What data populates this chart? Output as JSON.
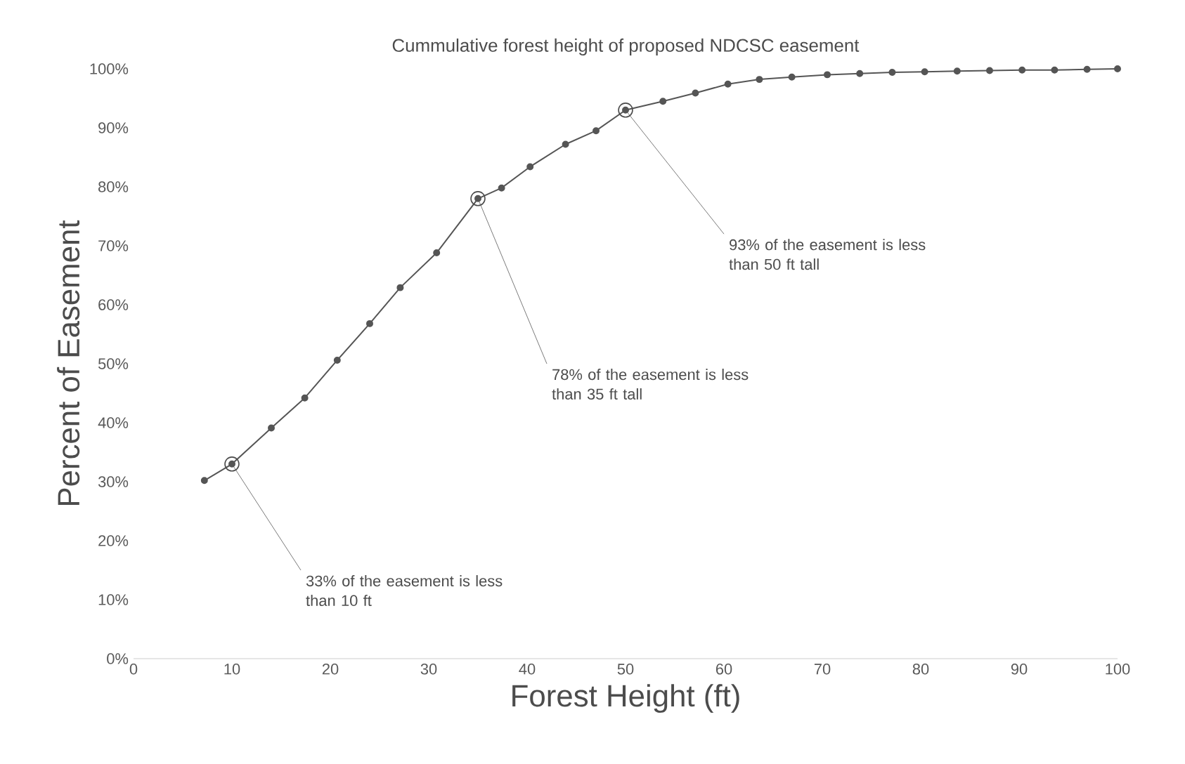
{
  "chart_data": {
    "type": "line",
    "title": "Cummulative forest height of proposed NDCSC easement",
    "xlabel": "Forest Height (ft)",
    "ylabel": "Percent of Easement",
    "series": [
      {
        "color": "#555555",
        "x": [
          7.2,
          10,
          14.0,
          17.4,
          20.7,
          24.0,
          27.1,
          30.8,
          35,
          37.4,
          40.3,
          43.9,
          47,
          50,
          53.8,
          57.1,
          60.4,
          63.6,
          66.9,
          70.5,
          73.8,
          77.1,
          80.4,
          83.7,
          87,
          90.3,
          93.6,
          96.9,
          100
        ],
        "values": [
          30.2,
          33,
          39.1,
          44.2,
          50.6,
          56.8,
          62.9,
          68.8,
          78,
          79.8,
          83.4,
          87.2,
          89.5,
          93,
          94.5,
          95.9,
          97.4,
          98.2,
          98.6,
          99,
          99.2,
          99.4,
          99.5,
          99.6,
          99.7,
          99.8,
          99.8,
          99.9,
          100
        ]
      }
    ],
    "marker": "circle",
    "xlim": [
      0,
      100
    ],
    "xticks": [
      0,
      10,
      20,
      30,
      40,
      50,
      60,
      70,
      80,
      90,
      100
    ],
    "ylim": [
      0,
      100
    ],
    "yticks": [
      {
        "value": 0,
        "label": "0%"
      },
      {
        "value": 10,
        "label": "10%"
      },
      {
        "value": 20,
        "label": "20%"
      },
      {
        "value": 30,
        "label": "30%"
      },
      {
        "value": 40,
        "label": "40%"
      },
      {
        "value": 50,
        "label": "50%"
      },
      {
        "value": 60,
        "label": "60%"
      },
      {
        "value": 70,
        "label": "70%"
      },
      {
        "value": 80,
        "label": "80%"
      },
      {
        "value": 90,
        "label": "90%"
      },
      {
        "value": 100,
        "label": "100%"
      }
    ],
    "annotations": [
      {
        "text": "33% of the easement is less than 10 ft",
        "x": 10,
        "y": 33
      },
      {
        "text": "78% of the easement is less than 35 ft tall",
        "x": 35,
        "y": 78
      },
      {
        "text": "93% of the easement is less than 50 ft tall",
        "x": 50,
        "y": 93
      }
    ]
  }
}
